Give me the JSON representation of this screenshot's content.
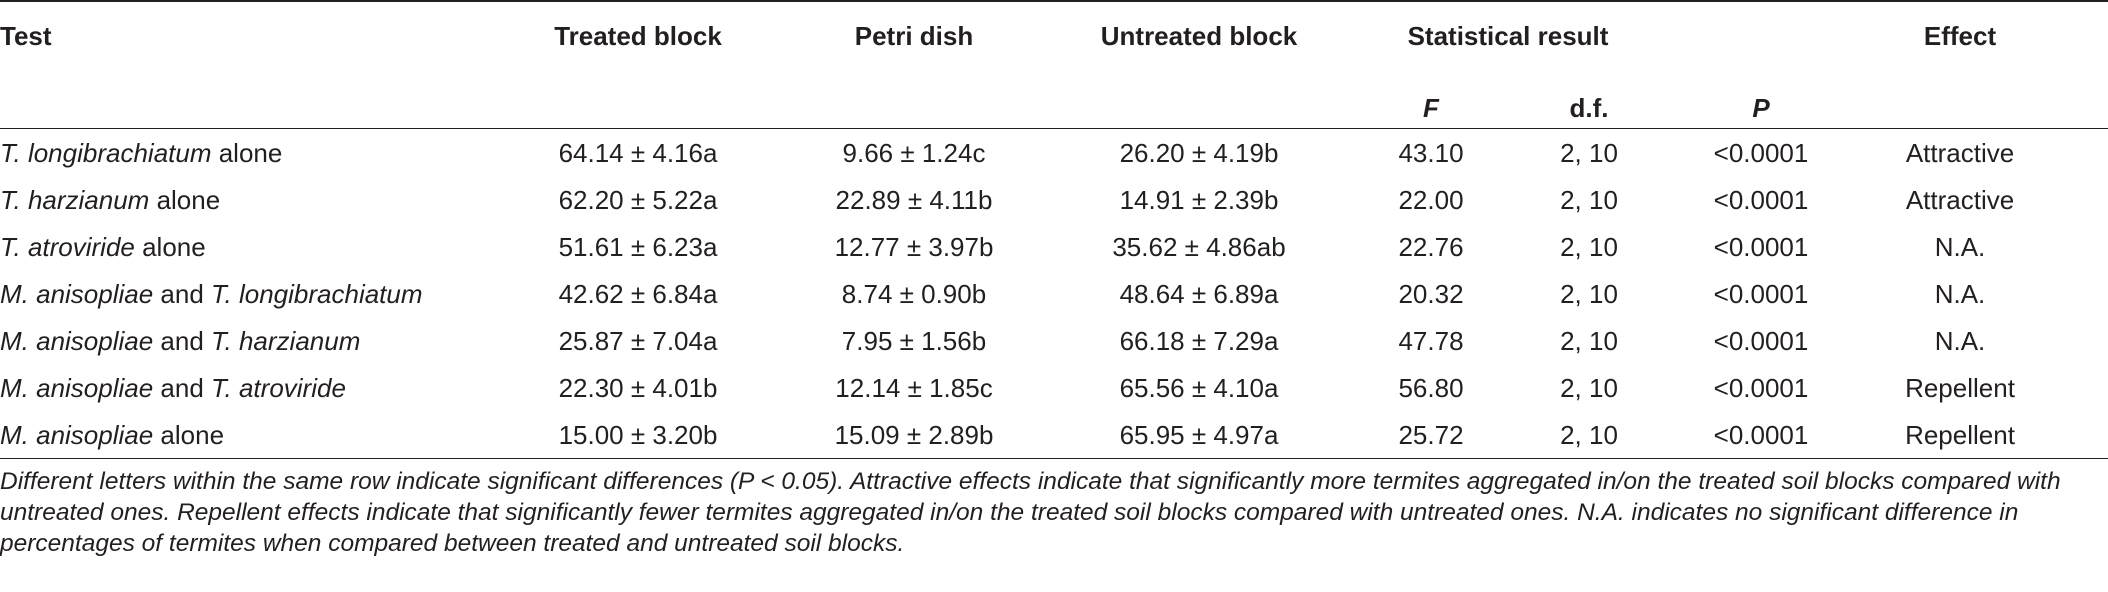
{
  "table": {
    "header": [
      "Test",
      "Treated block",
      "Petri dish",
      "Untreated block",
      "Statistical result",
      "Effect"
    ],
    "subheader": [
      {
        "text": "F",
        "italic": true
      },
      {
        "text": "d.f.",
        "italic": false
      },
      {
        "text": "P",
        "italic": true
      }
    ],
    "rows": [
      [
        [
          {
            "text": "T. longibrachiatum",
            "italic": true
          },
          {
            "text": " alone",
            "italic": false
          }
        ],
        "64.14 ± 4.16a",
        "9.66 ± 1.24c",
        "26.20 ± 4.19b",
        "43.10",
        "2, 10",
        "<0.0001",
        "Attractive"
      ],
      [
        [
          {
            "text": "T. harzianum",
            "italic": true
          },
          {
            "text": " alone",
            "italic": false
          }
        ],
        "62.20 ± 5.22a",
        "22.89 ± 4.11b",
        "14.91 ± 2.39b",
        "22.00",
        "2, 10",
        "<0.0001",
        "Attractive"
      ],
      [
        [
          {
            "text": "T. atroviride",
            "italic": true
          },
          {
            "text": " alone",
            "italic": false
          }
        ],
        "51.61 ± 6.23a",
        "12.77 ± 3.97b",
        "35.62 ± 4.86ab",
        "22.76",
        "2, 10",
        "<0.0001",
        "N.A."
      ],
      [
        [
          {
            "text": "M. anisopliae",
            "italic": true
          },
          {
            "text": " and ",
            "italic": false
          },
          {
            "text": "T. longibrachiatum",
            "italic": true
          }
        ],
        "42.62 ± 6.84a",
        "8.74 ± 0.90b",
        "48.64 ± 6.89a",
        "20.32",
        "2, 10",
        "<0.0001",
        "N.A."
      ],
      [
        [
          {
            "text": "M. anisopliae",
            "italic": true
          },
          {
            "text": " and ",
            "italic": false
          },
          {
            "text": "T. harzianum",
            "italic": true
          }
        ],
        "25.87 ± 7.04a",
        "7.95 ± 1.56b",
        "66.18 ± 7.29a",
        "47.78",
        "2, 10",
        "<0.0001",
        "N.A."
      ],
      [
        [
          {
            "text": "M. anisopliae",
            "italic": true
          },
          {
            "text": " and ",
            "italic": false
          },
          {
            "text": "T. atroviride",
            "italic": true
          }
        ],
        "22.30 ± 4.01b",
        "12.14 ± 1.85c",
        "65.56 ± 4.10a",
        "56.80",
        "2, 10",
        "<0.0001",
        "Repellent"
      ],
      [
        [
          {
            "text": "M. anisopliae",
            "italic": true
          },
          {
            "text": " alone",
            "italic": false
          }
        ],
        "15.00 ± 3.20b",
        "15.09 ± 2.89b",
        "65.95 ± 4.97a",
        "25.72",
        "2, 10",
        "<0.0001",
        "Repellent"
      ]
    ],
    "footnote": "Different letters within the same row indicate significant differences (P < 0.05). Attractive effects indicate that significantly more termites aggregated in/on the treated soil blocks compared with untreated ones. Repellent effects indicate that significantly fewer termites aggregated in/on the treated soil blocks compared with untreated ones. N.A. indicates no significant difference in percentages of termites when compared between treated and untreated soil blocks."
  }
}
